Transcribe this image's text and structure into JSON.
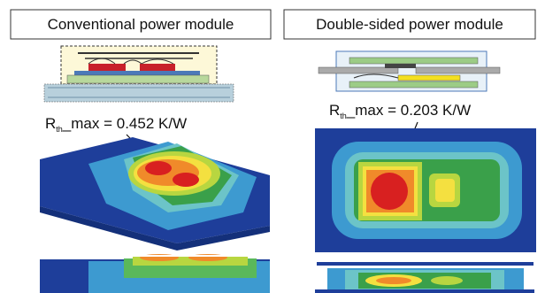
{
  "panels": [
    {
      "title": "Conventional power module",
      "label": {
        "symbol": "R",
        "subscript": "th",
        "text": "_max = 0.452 K/W"
      }
    },
    {
      "title": "Double-sided power module",
      "label": {
        "symbol": "R",
        "subscript": "th",
        "text": "_max = 0.203 K/W"
      }
    }
  ]
}
